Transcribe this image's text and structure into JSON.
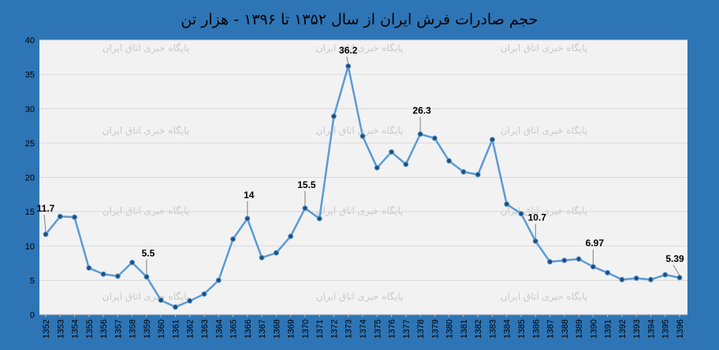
{
  "chart_data": {
    "type": "line",
    "title": "حجم صادرات فرش ایران از سال ۱۳۵۲ تا ۱۳۹۶ - هزار تن",
    "xlabel": "",
    "ylabel": "",
    "ylim": [
      0,
      40
    ],
    "yticks": [
      0,
      5,
      10,
      15,
      20,
      25,
      30,
      35,
      40
    ],
    "grid": true,
    "legend": "none",
    "watermark": "پایگاه خبری اتاق ایران",
    "colors": {
      "background": "#2e75b6",
      "plot": "#f2f2f2",
      "line": "#5b9bd5",
      "marker": "#1f4e79",
      "grid": "#d9d9d9"
    },
    "x": [
      "1352",
      "1353",
      "1354",
      "1355",
      "1356",
      "1357",
      "1358",
      "1359",
      "1360",
      "1361",
      "1362",
      "1363",
      "1364",
      "1365",
      "1366",
      "1367",
      "1368",
      "1369",
      "1370",
      "1371",
      "1372",
      "1373",
      "1374",
      "1375",
      "1376",
      "1377",
      "1378",
      "1379",
      "1380",
      "1381",
      "1382",
      "1383",
      "1384",
      "1385",
      "1386",
      "1387",
      "1388",
      "1389",
      "1390",
      "1391",
      "1392",
      "1393",
      "1394",
      "1395",
      "1396"
    ],
    "values": [
      11.7,
      14.3,
      14.2,
      6.8,
      5.9,
      5.6,
      7.6,
      5.5,
      2.1,
      1.1,
      2.0,
      3.0,
      5.0,
      11.0,
      14,
      8.3,
      9.0,
      11.4,
      15.5,
      14.0,
      28.9,
      36.2,
      26.0,
      21.4,
      23.7,
      21.9,
      26.3,
      25.7,
      22.4,
      20.8,
      20.4,
      25.5,
      16.1,
      14.7,
      10.7,
      7.7,
      7.9,
      8.1,
      6.97,
      6.1,
      5.1,
      5.3,
      5.1,
      5.8,
      5.39
    ],
    "data_labels": [
      {
        "index": 0,
        "text": "11.7"
      },
      {
        "index": 7,
        "text": "5.5"
      },
      {
        "index": 14,
        "text": "14"
      },
      {
        "index": 18,
        "text": "15.5"
      },
      {
        "index": 21,
        "text": "36.2"
      },
      {
        "index": 26,
        "text": "26.3"
      },
      {
        "index": 34,
        "text": "10.7"
      },
      {
        "index": 38,
        "text": "6.97"
      },
      {
        "index": 44,
        "text": "5.39"
      }
    ]
  }
}
